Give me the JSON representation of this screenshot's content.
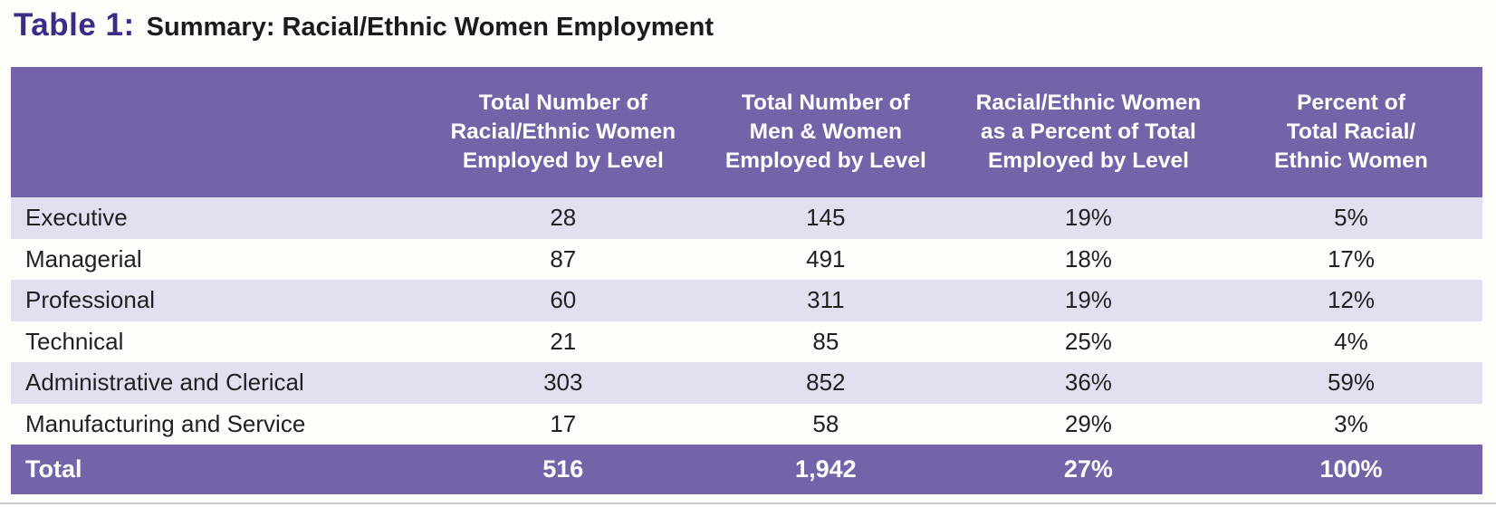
{
  "title": {
    "prefix": "Table 1:",
    "caption": "Summary: Racial/Ethnic Women Employment"
  },
  "chart_data": {
    "type": "table",
    "title": "Table 1: Summary: Racial/Ethnic Women Employment",
    "columns": [
      "",
      "Total Number of\nRacial/Ethnic Women\nEmployed by Level",
      "Total Number of\nMen & Women\nEmployed by Level",
      "Racial/Ethnic Women\nas a Percent of Total\nEmployed by Level",
      "Percent of\nTotal Racial/\nEthnic Women"
    ],
    "rows": [
      [
        "Executive",
        "28",
        "145",
        "19%",
        "5%"
      ],
      [
        "Managerial",
        "87",
        "491",
        "18%",
        "17%"
      ],
      [
        "Professional",
        "60",
        "311",
        "19%",
        "12%"
      ],
      [
        "Technical",
        "21",
        "85",
        "25%",
        "4%"
      ],
      [
        "Administrative and Clerical",
        "303",
        "852",
        "36%",
        "59%"
      ],
      [
        "Manufacturing and Service",
        "17",
        "58",
        "29%",
        "3%"
      ]
    ],
    "total_row": [
      "Total",
      "516",
      "1,942",
      "27%",
      "100%"
    ],
    "layout": {
      "row_striping": "alternating lavender/white starting lavender",
      "header_position": "top",
      "numeric_alignment": "center"
    }
  },
  "colors": {
    "header_bg": "#7463a9",
    "total_row_bg": "#7463a9",
    "row_alt_bg": "#e4dff0",
    "title_accent": "#3e2b85",
    "header_text": "#ffffff",
    "body_text": "#231f20",
    "bottom_rule": "#c9c9c9",
    "page_bg": "#fdfdfa"
  }
}
